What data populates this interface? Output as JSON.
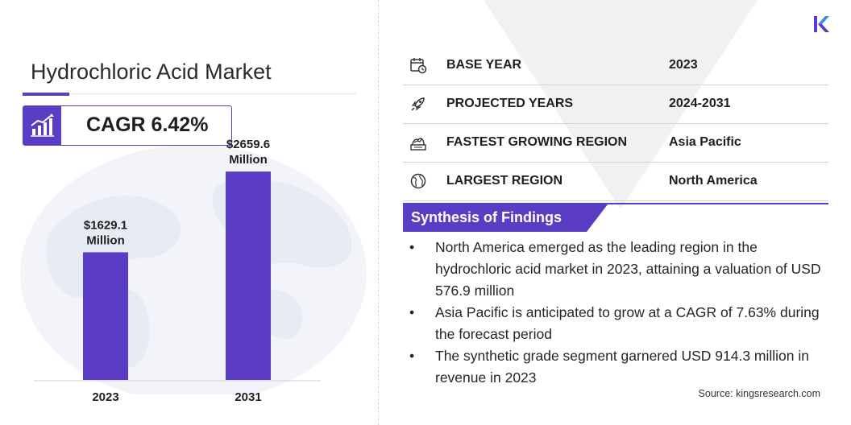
{
  "brand": {
    "logo_letter": "K"
  },
  "title": "Hydrochloric Acid Market",
  "cagr": {
    "text": "CAGR 6.42%",
    "icon": "growth-chart-icon"
  },
  "colors": {
    "accent": "#5b3cc4",
    "bar": "#5b3cc4",
    "globe": "#eef0f6",
    "text": "#1f1f1f"
  },
  "chart_data": {
    "type": "bar",
    "categories": [
      "2023",
      "2031"
    ],
    "values": [
      1629.1,
      2659.6
    ],
    "data_labels": [
      [
        "$1629.1",
        "Million"
      ],
      [
        "$2659.6",
        "Million"
      ]
    ],
    "title": "",
    "xlabel": "",
    "ylabel": "",
    "ylim": [
      0,
      3000
    ],
    "grid": false,
    "legend": "none"
  },
  "facts": [
    {
      "icon": "calendar-icon",
      "label": "BASE YEAR",
      "value": "2023"
    },
    {
      "icon": "rocket-icon",
      "label": "PROJECTED YEARS",
      "value": "2024-2031"
    },
    {
      "icon": "region-growth-icon",
      "label": "FASTEST GROWING REGION",
      "value": "Asia Pacific"
    },
    {
      "icon": "globe-icon",
      "label": "LARGEST REGION",
      "value": "North America"
    }
  ],
  "synthesis": {
    "heading": "Synthesis of Findings",
    "bullet": "•",
    "items": [
      "North America emerged as the leading region in the hydrochloric acid market in 2023, attaining a valuation of USD 576.9 million",
      "Asia Pacific is anticipated to grow at a CAGR of 7.63% during the forecast period",
      "The synthetic grade segment garnered USD 914.3 million in revenue in 2023"
    ]
  },
  "source": "Source:  kingsresearch.com"
}
